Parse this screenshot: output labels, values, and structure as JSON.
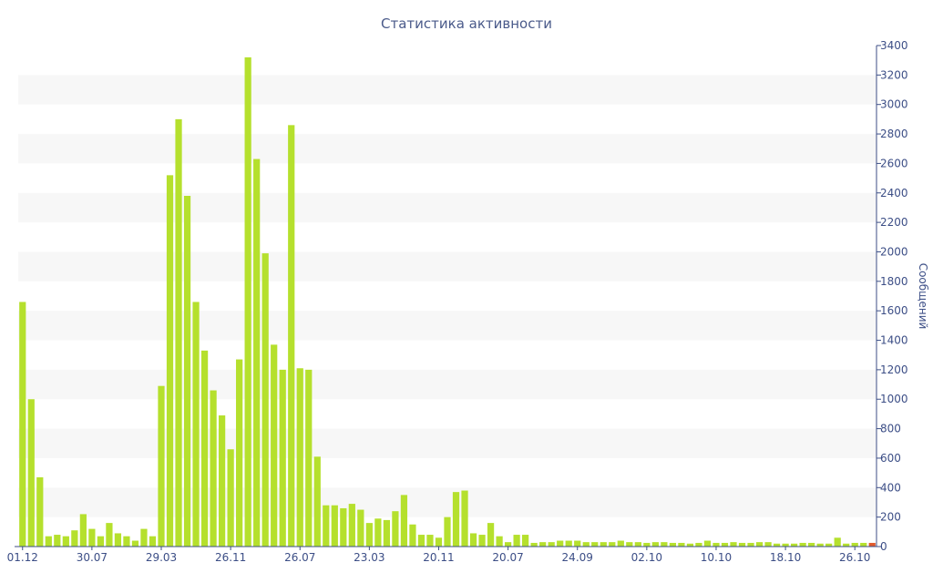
{
  "chart_data": {
    "type": "bar",
    "title": "Статистика активности",
    "ylabel": "Сообщений",
    "ylim": [
      0,
      3400
    ],
    "yticks": [
      0,
      200,
      400,
      600,
      800,
      1000,
      1200,
      1400,
      1600,
      1800,
      2000,
      2200,
      2400,
      2600,
      2800,
      3000,
      3200,
      3400
    ],
    "xtick_labels": [
      "01.12",
      "30.07",
      "29.03",
      "26.11",
      "26.07",
      "23.03",
      "20.11",
      "20.07",
      "24.09",
      "02.10",
      "10.10",
      "18.10",
      "26.10"
    ],
    "xtick_bar_index": [
      0,
      8,
      16,
      24,
      32,
      40,
      48,
      56,
      64,
      72,
      80,
      88,
      96
    ],
    "grid": "alternating horizontal bands",
    "axis_position": "right",
    "bar_color": "#b5e02d",
    "highlight_color": "#e05a2d",
    "values": [
      1660,
      1000,
      470,
      70,
      80,
      70,
      110,
      220,
      120,
      70,
      160,
      90,
      70,
      40,
      120,
      70,
      1090,
      2520,
      2900,
      2380,
      1660,
      1330,
      1060,
      890,
      660,
      1270,
      3320,
      2630,
      1990,
      1370,
      1200,
      2860,
      1210,
      1200,
      610,
      280,
      280,
      260,
      290,
      250,
      160,
      190,
      180,
      240,
      350,
      150,
      80,
      80,
      60,
      200,
      370,
      380,
      90,
      80,
      160,
      70,
      30,
      80,
      80,
      25,
      30,
      30,
      40,
      40,
      40,
      30,
      30,
      30,
      30,
      40,
      30,
      30,
      25,
      30,
      30,
      25,
      25,
      20,
      25,
      40,
      25,
      25,
      30,
      25,
      25,
      30,
      30,
      20,
      20,
      20,
      25,
      25,
      20,
      20,
      60,
      20,
      25,
      25,
      25
    ],
    "highlight_index": 98
  }
}
